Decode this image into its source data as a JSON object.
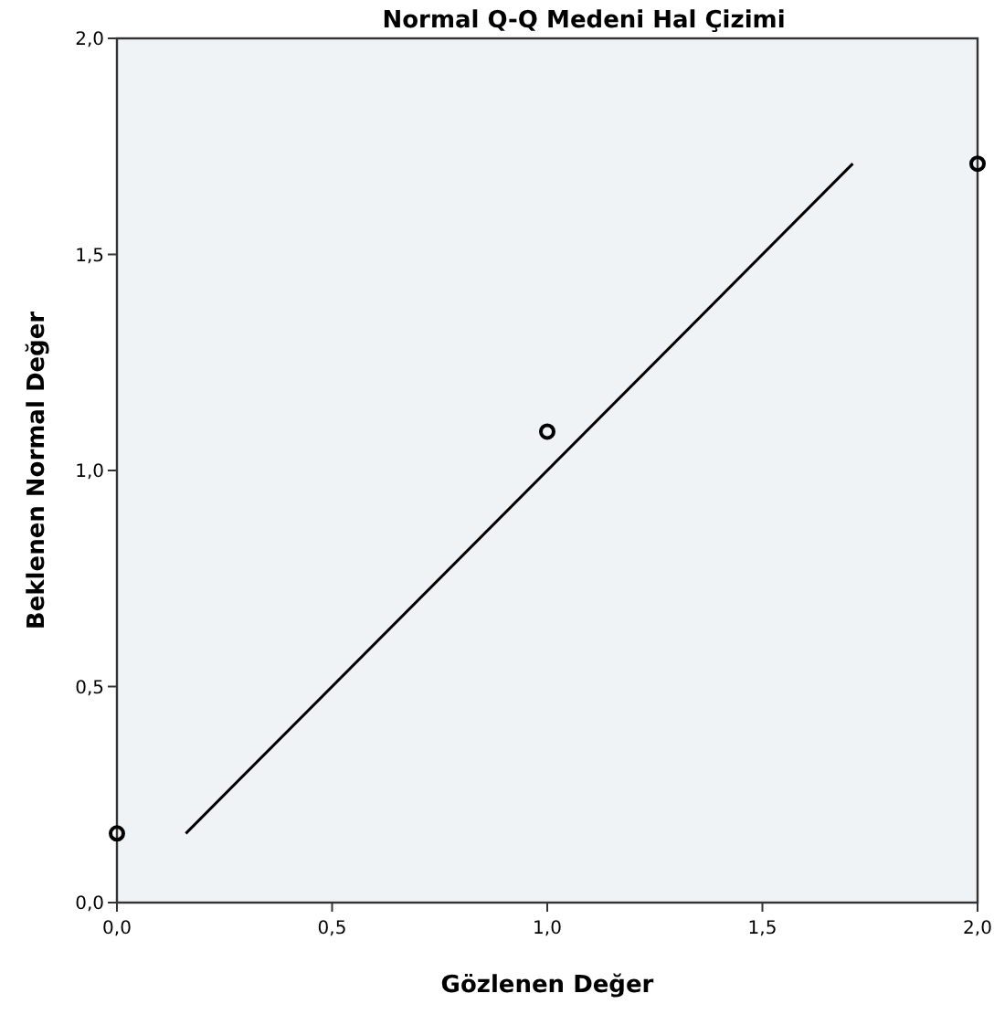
{
  "chart_data": {
    "type": "scatter",
    "title": "Normal Q-Q Medeni Hal Çizimi",
    "xlabel": "Gözlenen Değer",
    "ylabel": "Beklenen Normal Değer",
    "x": [
      0,
      1,
      2
    ],
    "series": [
      {
        "color": "#000000",
        "marker": "circle",
        "values": [
          0.16,
          1.09,
          1.71
        ]
      },
      {
        "type": "line",
        "color": "#000000",
        "x": [
          0.16,
          1.71
        ],
        "values": [
          0.16,
          1.71
        ],
        "line_style": "solid"
      }
    ],
    "xlim": [
      0,
      2
    ],
    "ylim": [
      0,
      2
    ],
    "xticks": [
      {
        "value": 0,
        "label": "0,0"
      },
      {
        "value": 0.5,
        "label": "0,5"
      },
      {
        "value": 1,
        "label": "1,0"
      },
      {
        "value": 1.5,
        "label": "1,5"
      },
      {
        "value": 2,
        "label": "2,0"
      }
    ],
    "yticks": [
      {
        "value": 0,
        "label": "0,0"
      },
      {
        "value": 0.5,
        "label": "0,5"
      },
      {
        "value": 1,
        "label": "1,0"
      },
      {
        "value": 1.5,
        "label": "1,5"
      },
      {
        "value": 2,
        "label": "2,0"
      }
    ],
    "grid": false
  }
}
